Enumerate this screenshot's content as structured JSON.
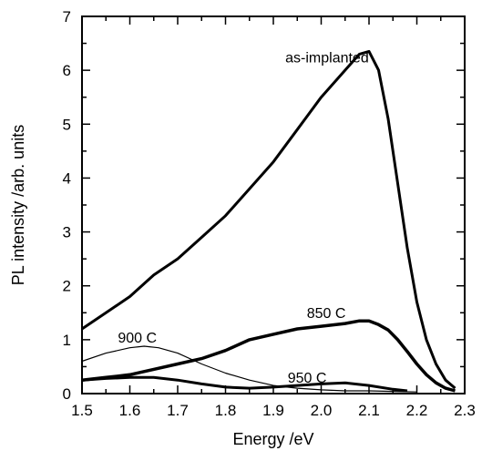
{
  "chart_data": {
    "type": "line",
    "title": "",
    "xlabel": "Energy /eV",
    "ylabel": "PL intensity /arb. units",
    "xlim": [
      1.5,
      2.3
    ],
    "ylim": [
      0,
      7
    ],
    "grid": false,
    "x_ticks": [
      "1.5",
      "1.6",
      "1.7",
      "1.8",
      "1.9",
      "2.0",
      "2.1",
      "2.2",
      "2.3"
    ],
    "y_ticks": [
      "0",
      "1",
      "2",
      "3",
      "4",
      "5",
      "6",
      "7"
    ],
    "series": [
      {
        "name": "as-implanted",
        "color": "#000000",
        "x": [
          1.5,
          1.55,
          1.6,
          1.65,
          1.7,
          1.75,
          1.8,
          1.85,
          1.9,
          1.95,
          2.0,
          2.05,
          2.08,
          2.1,
          2.12,
          2.14,
          2.16,
          2.18,
          2.2,
          2.22,
          2.24,
          2.26,
          2.28
        ],
        "y": [
          1.2,
          1.5,
          1.8,
          2.2,
          2.5,
          2.9,
          3.3,
          3.8,
          4.3,
          4.9,
          5.5,
          6.0,
          6.3,
          6.35,
          6.0,
          5.1,
          3.9,
          2.7,
          1.7,
          1.0,
          0.55,
          0.25,
          0.1
        ]
      },
      {
        "name": "850 C",
        "color": "#000000",
        "x": [
          1.5,
          1.55,
          1.6,
          1.65,
          1.7,
          1.75,
          1.8,
          1.85,
          1.9,
          1.95,
          2.0,
          2.05,
          2.08,
          2.1,
          2.12,
          2.14,
          2.16,
          2.18,
          2.2,
          2.22,
          2.24,
          2.26,
          2.28
        ],
        "y": [
          0.25,
          0.3,
          0.35,
          0.45,
          0.55,
          0.65,
          0.8,
          1.0,
          1.1,
          1.2,
          1.25,
          1.3,
          1.35,
          1.35,
          1.28,
          1.18,
          1.0,
          0.78,
          0.55,
          0.35,
          0.2,
          0.1,
          0.05
        ]
      },
      {
        "name": "900 C",
        "color": "#000000",
        "x": [
          1.5,
          1.55,
          1.6,
          1.63,
          1.66,
          1.7,
          1.75,
          1.8,
          1.85,
          1.9,
          1.95,
          2.0,
          2.05,
          2.1,
          2.15,
          2.2
        ],
        "y": [
          0.6,
          0.75,
          0.85,
          0.88,
          0.85,
          0.75,
          0.55,
          0.38,
          0.25,
          0.15,
          0.1,
          0.07,
          0.05,
          0.05,
          0.04,
          0.03
        ]
      },
      {
        "name": "950 C",
        "color": "#000000",
        "x": [
          1.5,
          1.55,
          1.6,
          1.65,
          1.7,
          1.75,
          1.8,
          1.85,
          1.9,
          1.95,
          2.0,
          2.05,
          2.1,
          2.15,
          2.18
        ],
        "y": [
          0.25,
          0.28,
          0.3,
          0.3,
          0.25,
          0.18,
          0.12,
          0.1,
          0.12,
          0.15,
          0.18,
          0.2,
          0.15,
          0.08,
          0.05
        ]
      }
    ]
  }
}
